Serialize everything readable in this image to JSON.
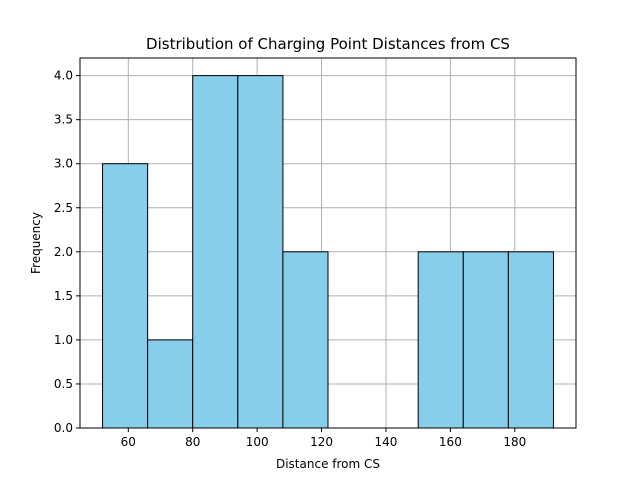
{
  "chart_data": {
    "type": "bar",
    "title": "Distribution of Charging Point Distances from CS",
    "xlabel": "Distance from CS",
    "ylabel": "Frequency",
    "bin_edges": [
      52,
      66,
      80,
      94,
      108,
      122,
      136,
      150,
      164,
      178,
      192
    ],
    "values": [
      3,
      1,
      4,
      4,
      2,
      0,
      0,
      2,
      2,
      2
    ],
    "xlim": [
      45,
      199
    ],
    "ylim": [
      0,
      4.2
    ],
    "xticks": [
      60,
      80,
      100,
      120,
      140,
      160,
      180
    ],
    "xtick_labels": [
      "60",
      "80",
      "100",
      "120",
      "140",
      "160",
      "180"
    ],
    "yticks": [
      0,
      0.5,
      1,
      1.5,
      2,
      2.5,
      3,
      3.5,
      4
    ],
    "ytick_labels": [
      "0.0",
      "0.5",
      "1.0",
      "1.5",
      "2.0",
      "2.5",
      "3.0",
      "3.5",
      "4.0"
    ],
    "grid": true,
    "bar_color": "#87ceeb",
    "bar_edge_color": "#000000",
    "grid_color": "#b0b0b0"
  }
}
